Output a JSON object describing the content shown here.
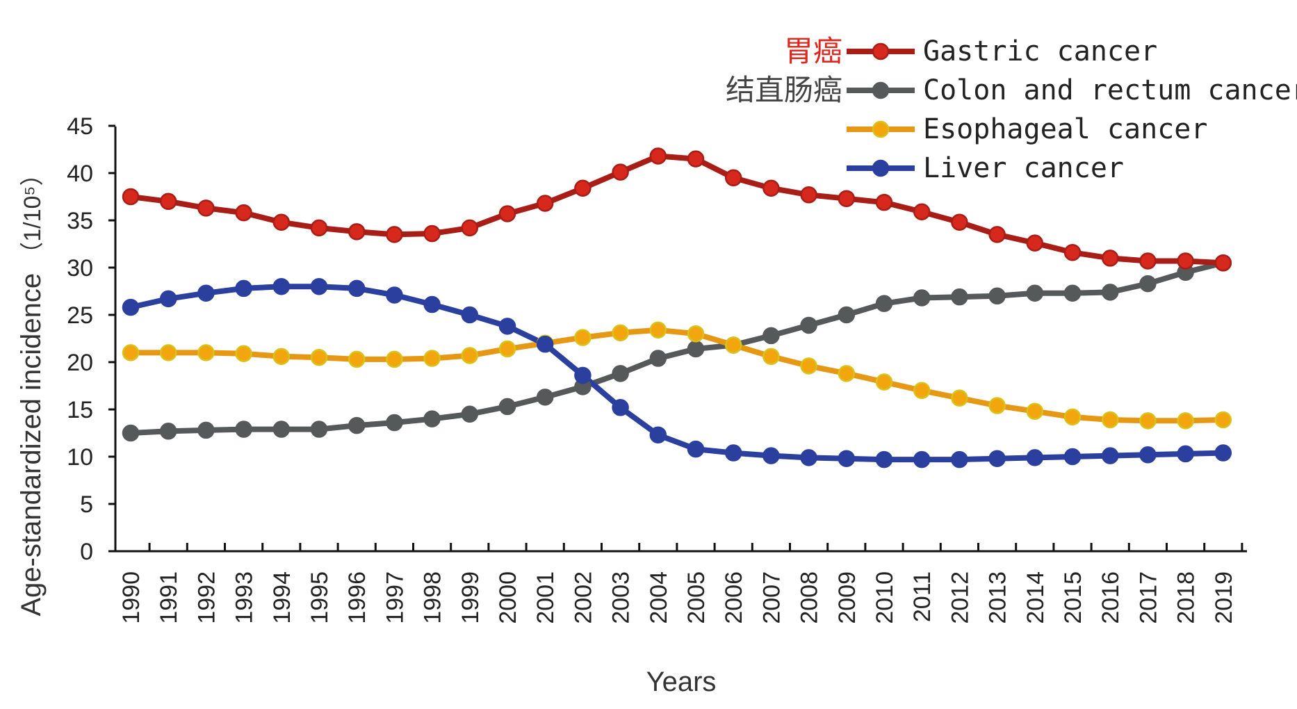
{
  "chart_data": {
    "type": "line",
    "xlabel": "Years",
    "ylabel_main": "Age-standardized incidence",
    "ylabel_unit": "（1/10⁵）",
    "ylim": [
      0,
      45
    ],
    "yticks": [
      "0",
      "5",
      "10",
      "15",
      "20",
      "25",
      "30",
      "35",
      "40",
      "45"
    ],
    "categories": [
      "1990",
      "1991",
      "1992",
      "1993",
      "1994",
      "1995",
      "1996",
      "1997",
      "1998",
      "1999",
      "2000",
      "2001",
      "2002",
      "2003",
      "2004",
      "2005",
      "2006",
      "2007",
      "2008",
      "2009",
      "2010",
      "2011",
      "2012",
      "2013",
      "2014",
      "2015",
      "2016",
      "2017",
      "2018",
      "2019"
    ],
    "series": [
      {
        "name": "Gastric cancer",
        "label_cn": "胃癌",
        "color": "#d7281e",
        "line_color": "#a81d16",
        "label_cn_color": "#e0261c",
        "values": [
          37.5,
          37.0,
          36.3,
          35.8,
          34.8,
          34.2,
          33.8,
          33.5,
          33.6,
          34.2,
          35.7,
          36.8,
          38.4,
          40.1,
          41.8,
          41.5,
          39.5,
          38.4,
          37.7,
          37.3,
          36.9,
          35.9,
          34.8,
          33.5,
          32.6,
          31.6,
          31.0,
          30.7,
          30.7,
          30.5
        ]
      },
      {
        "name": "Colon and rectum cancer",
        "label_cn": "结直肠癌",
        "color": "#56595a",
        "line_color": "#56595a",
        "label_cn_color": "#444444",
        "values": [
          12.5,
          12.7,
          12.8,
          12.9,
          12.9,
          12.9,
          13.3,
          13.6,
          14.0,
          14.5,
          15.3,
          16.3,
          17.4,
          18.8,
          20.4,
          21.4,
          21.8,
          22.8,
          23.9,
          25.0,
          26.2,
          26.8,
          26.9,
          27.0,
          27.3,
          27.3,
          27.4,
          28.3,
          29.5,
          30.5
        ]
      },
      {
        "name": "Esophageal cancer",
        "label_cn": "",
        "color": "#f2a50c",
        "line_color": "#e69814",
        "label_cn_color": "#444444",
        "values": [
          21.0,
          21.0,
          21.0,
          20.9,
          20.6,
          20.5,
          20.3,
          20.3,
          20.4,
          20.7,
          21.4,
          22.0,
          22.6,
          23.1,
          23.4,
          23.0,
          21.8,
          20.6,
          19.6,
          18.8,
          17.9,
          17.0,
          16.2,
          15.4,
          14.8,
          14.2,
          13.9,
          13.8,
          13.8,
          13.9
        ]
      },
      {
        "name": "Liver cancer",
        "label_cn": "",
        "color": "#2a3f9e",
        "line_color": "#2a3f9e",
        "label_cn_color": "#444444",
        "values": [
          25.8,
          26.7,
          27.3,
          27.8,
          28.0,
          28.0,
          27.8,
          27.1,
          26.1,
          25.0,
          23.8,
          21.9,
          18.6,
          15.2,
          12.3,
          10.8,
          10.4,
          10.1,
          9.9,
          9.8,
          9.7,
          9.7,
          9.7,
          9.8,
          9.9,
          10.0,
          10.1,
          10.2,
          10.3,
          10.4
        ]
      }
    ]
  }
}
